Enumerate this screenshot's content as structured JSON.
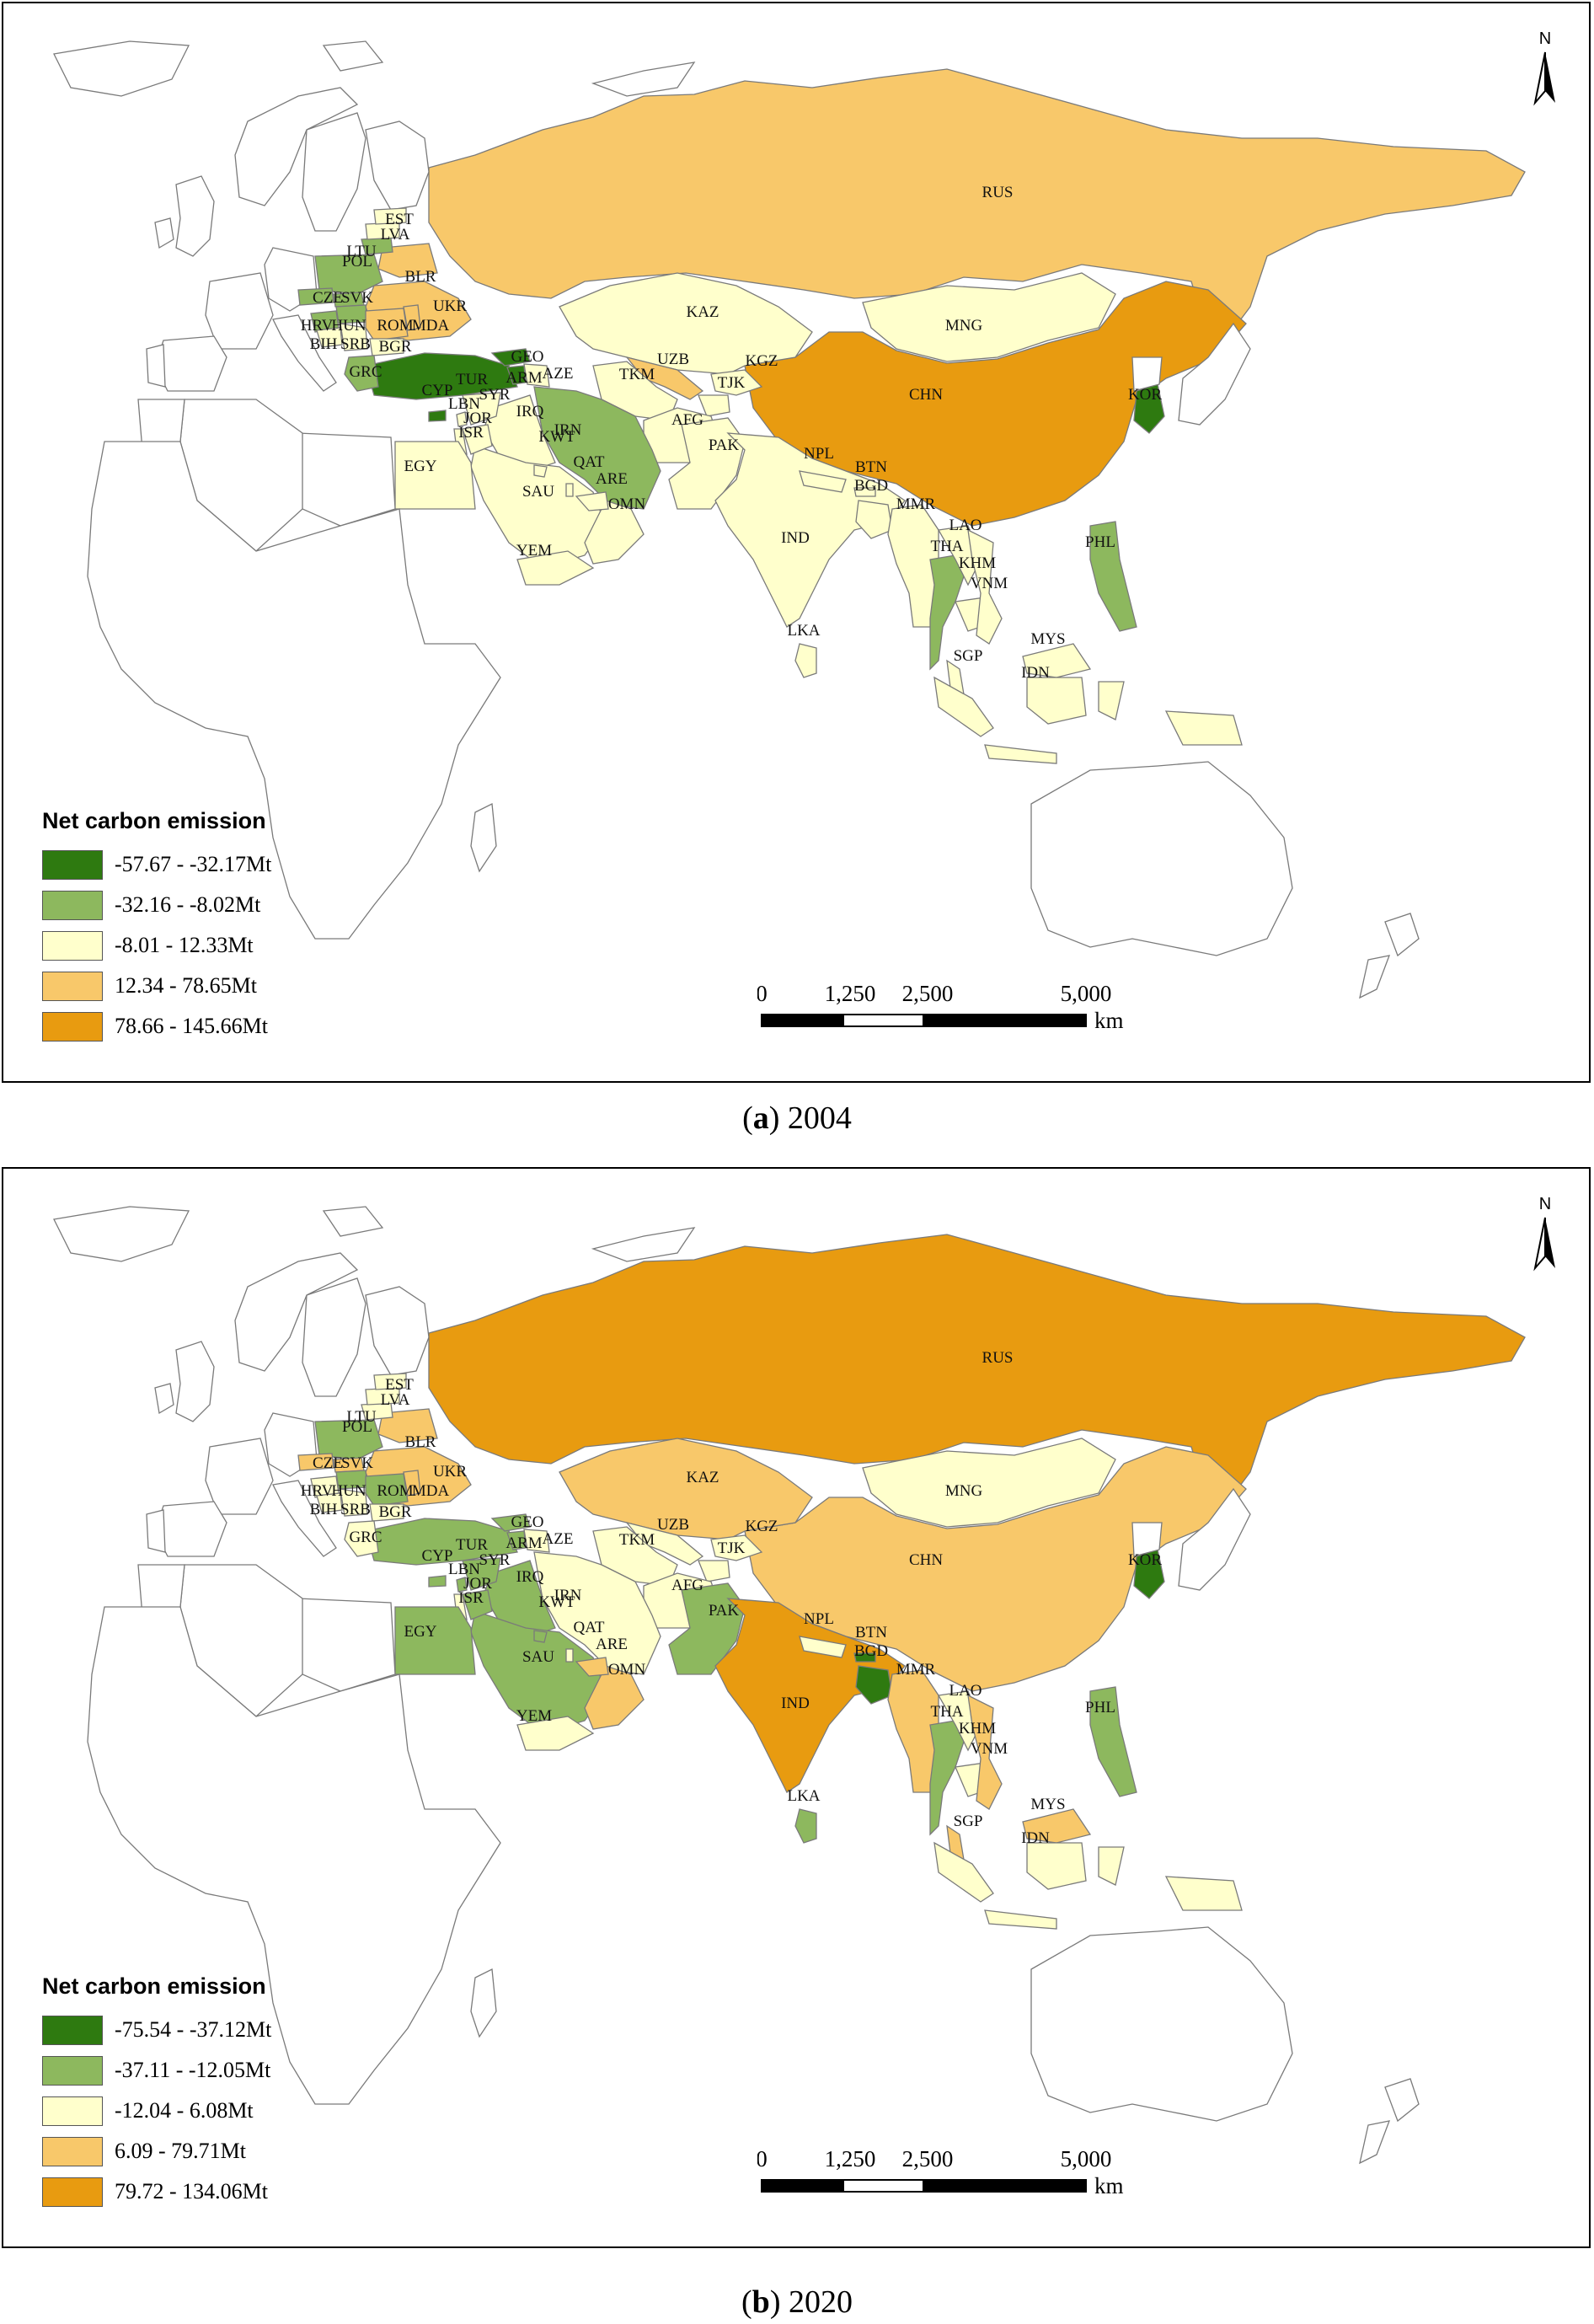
{
  "panels": [
    {
      "caption_letter": "a",
      "caption_year": "2004",
      "legend_title": "Net carbon emission",
      "legend": [
        {
          "label": "-57.67 - -32.17Mt",
          "color": "#2e7a10"
        },
        {
          "label": "-32.16 - -8.02Mt",
          "color": "#8db85e"
        },
        {
          "label": "-8.01 - 12.33Mt",
          "color": "#ffffcc"
        },
        {
          "label": "12.34 - 78.65Mt",
          "color": "#f8c86a"
        },
        {
          "label": "78.66 - 145.66Mt",
          "color": "#e89b10"
        }
      ],
      "scale": {
        "ticks": [
          "0",
          "1,250",
          "2,500",
          "5,000"
        ],
        "unit": "km"
      },
      "north": "N"
    },
    {
      "caption_letter": "b",
      "caption_year": "2020",
      "legend_title": "Net carbon emission",
      "legend": [
        {
          "label": "-75.54 - -37.12Mt",
          "color": "#2e7a10"
        },
        {
          "label": "-37.11 - -12.05Mt",
          "color": "#8db85e"
        },
        {
          "label": "-12.04 - 6.08Mt",
          "color": "#ffffcc"
        },
        {
          "label": "6.09 - 79.71Mt",
          "color": "#f8c86a"
        },
        {
          "label": "79.72 - 134.06Mt",
          "color": "#e89b10"
        }
      ],
      "scale": {
        "ticks": [
          "0",
          "1,250",
          "2,500",
          "5,000"
        ],
        "unit": "km"
      },
      "north": "N"
    }
  ],
  "countries_2004": [
    {
      "code": "RUS",
      "cls": 3
    },
    {
      "code": "CHN",
      "cls": 4
    },
    {
      "code": "KAZ",
      "cls": 2
    },
    {
      "code": "MNG",
      "cls": 2
    },
    {
      "code": "IND",
      "cls": 2
    },
    {
      "code": "IRN",
      "cls": 1
    },
    {
      "code": "TUR",
      "cls": 0
    },
    {
      "code": "KOR",
      "cls": 0
    },
    {
      "code": "THA",
      "cls": 1
    },
    {
      "code": "PHL",
      "cls": 1
    },
    {
      "code": "SAU",
      "cls": 2
    },
    {
      "code": "EGY",
      "cls": 2
    },
    {
      "code": "PAK",
      "cls": 2
    },
    {
      "code": "AFG",
      "cls": 2
    },
    {
      "code": "UZB",
      "cls": 3
    },
    {
      "code": "TKM",
      "cls": 2
    },
    {
      "code": "IDN",
      "cls": 2
    },
    {
      "code": "MYS",
      "cls": 2
    },
    {
      "code": "UKR",
      "cls": 3
    },
    {
      "code": "POL",
      "cls": 1
    },
    {
      "code": "BLR",
      "cls": 3
    },
    {
      "code": "YEM",
      "cls": 2
    },
    {
      "code": "OMN",
      "cls": 2
    },
    {
      "code": "IRQ",
      "cls": 2
    },
    {
      "code": "MMR",
      "cls": 2
    },
    {
      "code": "VNM",
      "cls": 2
    },
    {
      "code": "LAO",
      "cls": 2
    },
    {
      "code": "KHM",
      "cls": 2
    },
    {
      "code": "LKA",
      "cls": 2
    },
    {
      "code": "BGD",
      "cls": 2
    },
    {
      "code": "NPL",
      "cls": 2
    },
    {
      "code": "KGZ",
      "cls": 2
    },
    {
      "code": "TJK",
      "cls": 2
    },
    {
      "code": "SYR",
      "cls": 2
    },
    {
      "code": "JOR",
      "cls": 2
    },
    {
      "code": "ARE",
      "cls": 2
    },
    {
      "code": "ROM",
      "cls": 3
    },
    {
      "code": "BGR",
      "cls": 2
    },
    {
      "code": "GRC",
      "cls": 1
    },
    {
      "code": "CZE",
      "cls": 1
    }
  ],
  "countries_2020": [
    {
      "code": "RUS",
      "cls": 4
    },
    {
      "code": "CHN",
      "cls": 3
    },
    {
      "code": "KAZ",
      "cls": 3
    },
    {
      "code": "MNG",
      "cls": 2
    },
    {
      "code": "IND",
      "cls": 4
    },
    {
      "code": "IRN",
      "cls": 2
    },
    {
      "code": "TUR",
      "cls": 1
    },
    {
      "code": "KOR",
      "cls": 0
    },
    {
      "code": "THA",
      "cls": 1
    },
    {
      "code": "PHL",
      "cls": 1
    },
    {
      "code": "SAU",
      "cls": 1
    },
    {
      "code": "EGY",
      "cls": 1
    },
    {
      "code": "PAK",
      "cls": 1
    },
    {
      "code": "AFG",
      "cls": 2
    },
    {
      "code": "UZB",
      "cls": 2
    },
    {
      "code": "TKM",
      "cls": 2
    },
    {
      "code": "IDN",
      "cls": 2
    },
    {
      "code": "MYS",
      "cls": 3
    },
    {
      "code": "UKR",
      "cls": 3
    },
    {
      "code": "POL",
      "cls": 1
    },
    {
      "code": "BLR",
      "cls": 3
    },
    {
      "code": "YEM",
      "cls": 2
    },
    {
      "code": "OMN",
      "cls": 3
    },
    {
      "code": "IRQ",
      "cls": 1
    },
    {
      "code": "MMR",
      "cls": 3
    },
    {
      "code": "VNM",
      "cls": 3
    },
    {
      "code": "LAO",
      "cls": 2
    },
    {
      "code": "KHM",
      "cls": 2
    },
    {
      "code": "LKA",
      "cls": 1
    },
    {
      "code": "BGD",
      "cls": 0
    },
    {
      "code": "NPL",
      "cls": 2
    },
    {
      "code": "KGZ",
      "cls": 2
    },
    {
      "code": "TJK",
      "cls": 2
    },
    {
      "code": "SYR",
      "cls": 1
    },
    {
      "code": "JOR",
      "cls": 1
    },
    {
      "code": "ARE",
      "cls": 3
    },
    {
      "code": "ROM",
      "cls": 1
    },
    {
      "code": "BGR",
      "cls": 2
    },
    {
      "code": "GRC",
      "cls": 2
    },
    {
      "code": "CZE",
      "cls": 3
    }
  ],
  "labels": [
    "RUS",
    "CHN",
    "KAZ",
    "MNG",
    "IND",
    "IRN",
    "TUR",
    "KOR",
    "THA",
    "PHL",
    "SAU",
    "EGY",
    "PAK",
    "AFG",
    "UZB",
    "TKM",
    "KGZ",
    "TJK",
    "IDN",
    "MYS",
    "SGP",
    "UKR",
    "POL",
    "BLR",
    "LTU",
    "LVA",
    "EST",
    "CZE",
    "SVK",
    "HRV",
    "HUN",
    "ROM",
    "MDA",
    "BIH",
    "SRB",
    "BGR",
    "GRC",
    "CYP",
    "GEO",
    "ARM",
    "AZE",
    "LBN",
    "SYR",
    "JOR",
    "ISR",
    "IRQ",
    "KWT",
    "QAT",
    "ARE",
    "OMN",
    "YEM",
    "NPL",
    "BTN",
    "BGD",
    "MMR",
    "LAO",
    "KHM",
    "VNM",
    "LKA"
  ]
}
